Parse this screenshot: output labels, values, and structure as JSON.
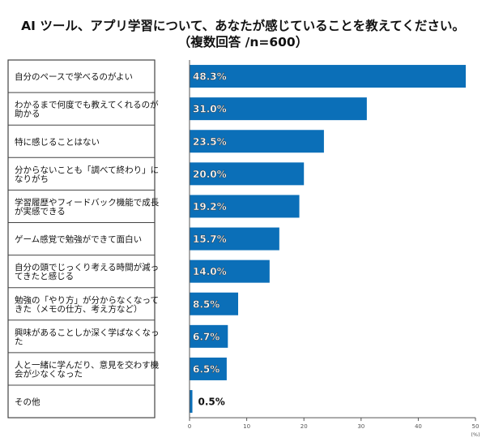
{
  "chart_data": {
    "type": "bar",
    "orientation": "horizontal",
    "title": "AI ツール、アプリ学習について、あなたが感じていることを教えてください。",
    "subtitle": "（複数回答 /n=600）",
    "categories": [
      "自分のペースで学べるのがよい",
      "わかるまで何度でも教えてくれるのが\n助かる",
      "特に感じることはない",
      "分からないことも「調べて終わり」に\nなりがち",
      "学習履歴やフィードバック機能で成長\nが実感できる",
      "ゲーム感覚で勉強ができて面白い",
      "自分の頭でじっくり考える時間が減っ\nてきたと感じる",
      "勉強の「やり方」が分からなくなって\nきた（メモの仕方、考え方など）",
      "興味があることしか深く学ばなくなっ\nた",
      "人と一緒に学んだり、意見を交わす機\n会が少なくなった",
      "その他"
    ],
    "values": [
      48.3,
      31.0,
      23.5,
      20.0,
      19.2,
      15.7,
      14.0,
      8.5,
      6.7,
      6.5,
      0.5
    ],
    "data_labels": [
      "48.3%",
      "31.0%",
      "23.5%",
      "20.0%",
      "19.2%",
      "15.7%",
      "14.0%",
      "8.5%",
      "6.7%",
      "6.5%",
      "0.5%"
    ],
    "xlim": [
      0,
      50
    ],
    "xticks": [
      "0",
      "10",
      "20",
      "30",
      "40",
      "50"
    ],
    "xunit": "(%)",
    "grid": false,
    "bar_color": "#0b6fb8"
  }
}
